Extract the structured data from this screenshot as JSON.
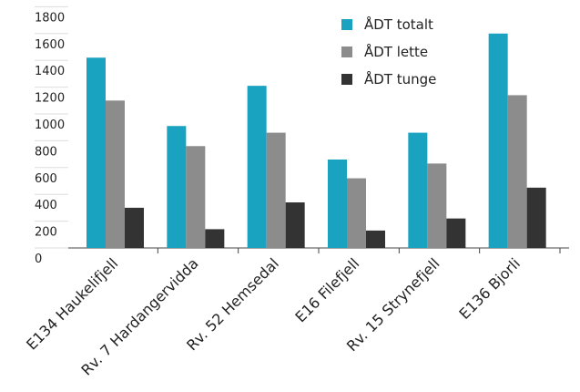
{
  "chart_data": {
    "type": "bar",
    "categories": [
      "E134 Haukelifjell",
      "Rv. 7 Hardangervidda",
      "Rv. 52 Hemsedal",
      "E16 Filefjell",
      "Rv. 15 Strynefjell",
      "E136 Bjorli"
    ],
    "series": [
      {
        "name": "ÅDT totalt",
        "color": "#1aa3c1",
        "values": [
          1420,
          910,
          1210,
          660,
          860,
          1600
        ]
      },
      {
        "name": "ÅDT lette",
        "color": "#8c8c8c",
        "values": [
          1100,
          760,
          860,
          520,
          630,
          1140
        ]
      },
      {
        "name": "ÅDT tunge",
        "color": "#333333",
        "values": [
          300,
          140,
          340,
          130,
          220,
          450
        ]
      }
    ],
    "ylim": [
      0,
      1800
    ],
    "yticks": [
      0,
      200,
      400,
      600,
      800,
      1000,
      1200,
      1400,
      1600,
      1800
    ],
    "legend": "top-right"
  }
}
